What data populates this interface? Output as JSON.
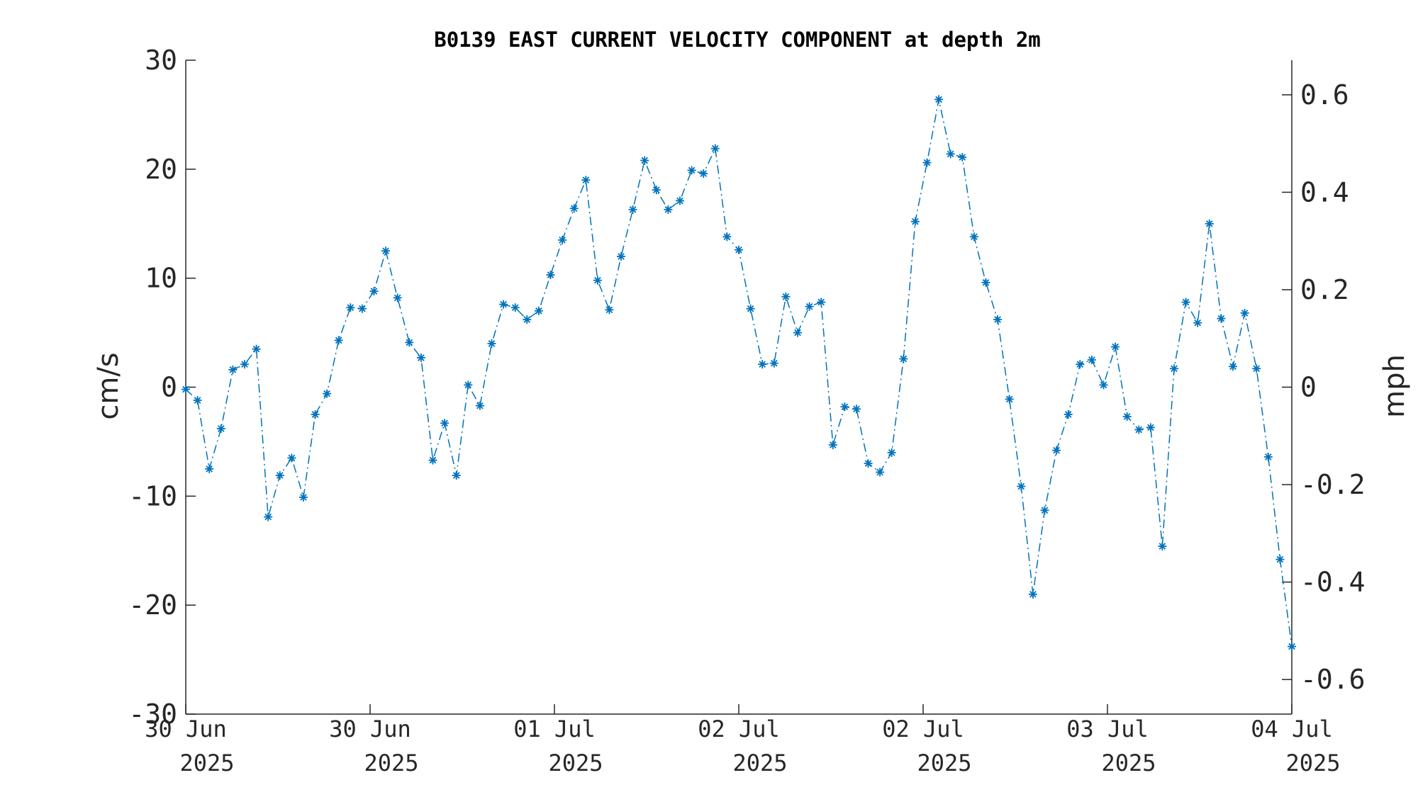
{
  "chart_data": {
    "type": "line",
    "title": "B0139 EAST CURRENT VELOCITY COMPONENT at depth 2m",
    "ylabel": "cm/s",
    "ylabel_right": "mph",
    "ylim": [
      -30,
      30
    ],
    "yticks": [
      -30,
      -20,
      -10,
      0,
      10,
      20,
      30
    ],
    "ylim_right": [
      -0.671,
      0.671
    ],
    "yticks_right": [
      -0.6,
      -0.4,
      -0.2,
      0,
      0.2,
      0.4,
      0.6
    ],
    "ytick_labels_right": [
      "-0.6",
      "-0.4",
      "-0.2",
      "0",
      "0.2",
      "0.4",
      "0.6"
    ],
    "xticks": [
      {
        "line1": "30 Jun",
        "line2": "2025"
      },
      {
        "line1": "30 Jun",
        "line2": "2025"
      },
      {
        "line1": "01 Jul",
        "line2": "2025"
      },
      {
        "line1": "02 Jul",
        "line2": "2025"
      },
      {
        "line1": "02 Jul",
        "line2": "2025"
      },
      {
        "line1": "03 Jul",
        "line2": "2025"
      },
      {
        "line1": "04 Jul",
        "line2": "2025"
      }
    ],
    "grid": false,
    "marker": "asterisk",
    "line_style": "dash-dot",
    "color": "#0072BD",
    "series": [
      {
        "values": [
          -0.2,
          -1.2,
          -7.5,
          -3.8,
          1.6,
          2.1,
          3.5,
          -11.9,
          -8.1,
          -6.5,
          -10.1,
          -2.5,
          -0.6,
          4.3,
          7.3,
          7.2,
          8.8,
          12.5,
          8.2,
          4.1,
          2.7,
          -6.7,
          -3.3,
          -8.1,
          0.2,
          -1.7,
          4.0,
          7.6,
          7.3,
          6.2,
          7.0,
          10.3,
          13.5,
          16.4,
          19.0,
          9.8,
          7.1,
          12.0,
          16.3,
          20.8,
          18.1,
          16.3,
          17.1,
          19.9,
          19.6,
          21.9,
          13.8,
          12.6,
          7.2,
          2.1,
          2.2,
          8.3,
          5.0,
          7.4,
          7.8,
          -5.3,
          -1.8,
          -2.0,
          -7.0,
          -7.8,
          -6.0,
          2.6,
          15.2,
          20.6,
          26.4,
          21.4,
          21.1,
          13.8,
          9.6,
          6.2,
          -1.1,
          -9.1,
          -19.0,
          -11.3,
          -5.8,
          -2.5,
          2.1,
          2.5,
          0.2,
          3.7,
          -2.7,
          -3.9,
          -3.7,
          -14.6,
          1.7,
          7.8,
          5.9,
          15.0,
          6.3,
          1.9,
          6.8,
          1.7,
          -6.4,
          -15.8,
          -23.8
        ]
      }
    ]
  }
}
